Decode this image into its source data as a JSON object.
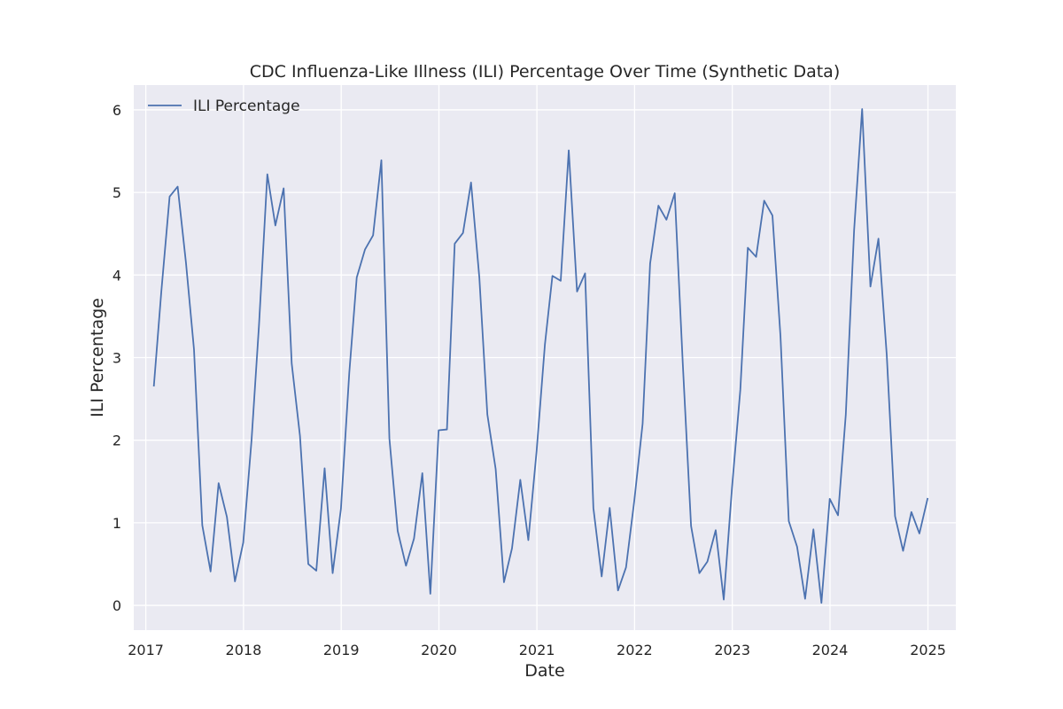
{
  "chart_data": {
    "type": "line",
    "title": "CDC Influenza-Like Illness (ILI) Percentage Over Time (Synthetic Data)",
    "xlabel": "Date",
    "ylabel": "ILI Percentage",
    "x_ticks": [
      "2017",
      "2018",
      "2019",
      "2020",
      "2021",
      "2022",
      "2023",
      "2024",
      "2025"
    ],
    "y_ticks": [
      "0",
      "1",
      "2",
      "3",
      "4",
      "5",
      "6"
    ],
    "xlim": [
      "2016-11-17",
      "2025-04-15"
    ],
    "ylim": [
      -0.3,
      6.3
    ],
    "grid": true,
    "legend_position": "top-left",
    "series": [
      {
        "name": "ILI Percentage",
        "color": "#4c72b0",
        "x": [
          "2017-01-31",
          "2017-02-28",
          "2017-03-31",
          "2017-04-30",
          "2017-05-31",
          "2017-06-30",
          "2017-07-31",
          "2017-08-31",
          "2017-09-30",
          "2017-10-31",
          "2017-11-30",
          "2017-12-31",
          "2018-01-31",
          "2018-02-28",
          "2018-03-31",
          "2018-04-30",
          "2018-05-31",
          "2018-06-30",
          "2018-07-31",
          "2018-08-31",
          "2018-09-30",
          "2018-10-31",
          "2018-11-30",
          "2018-12-31",
          "2019-01-31",
          "2019-02-28",
          "2019-03-31",
          "2019-04-30",
          "2019-05-31",
          "2019-06-30",
          "2019-07-31",
          "2019-08-31",
          "2019-09-30",
          "2019-10-31",
          "2019-11-30",
          "2019-12-31",
          "2020-01-31",
          "2020-02-29",
          "2020-03-31",
          "2020-04-30",
          "2020-05-31",
          "2020-06-30",
          "2020-07-31",
          "2020-08-31",
          "2020-09-30",
          "2020-10-31",
          "2020-11-30",
          "2020-12-31",
          "2021-01-31",
          "2021-02-28",
          "2021-03-31",
          "2021-04-30",
          "2021-05-31",
          "2021-06-30",
          "2021-07-31",
          "2021-08-31",
          "2021-09-30",
          "2021-10-31",
          "2021-11-30",
          "2021-12-31",
          "2022-01-31",
          "2022-02-28",
          "2022-03-31",
          "2022-04-30",
          "2022-05-31",
          "2022-06-30",
          "2022-07-31",
          "2022-08-31",
          "2022-09-30",
          "2022-10-31",
          "2022-11-30",
          "2022-12-31",
          "2023-01-31",
          "2023-02-28",
          "2023-03-31",
          "2023-04-30",
          "2023-05-31",
          "2023-06-30",
          "2023-07-31",
          "2023-08-31",
          "2023-09-30",
          "2023-10-31",
          "2023-11-30",
          "2023-12-31",
          "2024-01-31",
          "2024-02-29",
          "2024-03-31",
          "2024-04-30",
          "2024-05-31",
          "2024-06-30",
          "2024-07-31",
          "2024-08-31",
          "2024-09-30",
          "2024-10-31",
          "2024-11-30",
          "2024-12-31"
        ],
        "values": [
          2.65,
          3.8,
          4.95,
          5.07,
          4.15,
          3.1,
          0.97,
          0.41,
          1.48,
          1.07,
          0.29,
          0.76,
          2.0,
          3.4,
          5.22,
          4.6,
          5.05,
          2.93,
          2.05,
          0.5,
          0.42,
          1.66,
          0.39,
          1.17,
          2.81,
          3.97,
          4.31,
          4.48,
          5.39,
          2.02,
          0.9,
          0.48,
          0.81,
          1.6,
          0.14,
          2.12,
          2.13,
          4.38,
          4.51,
          5.12,
          3.97,
          2.31,
          1.65,
          0.28,
          0.69,
          1.52,
          0.79,
          1.87,
          3.16,
          3.99,
          3.93,
          5.51,
          3.8,
          4.02,
          1.18,
          0.35,
          1.18,
          0.18,
          0.46,
          1.27,
          2.2,
          4.14,
          4.84,
          4.67,
          4.99,
          2.93,
          0.96,
          0.39,
          0.53,
          0.91,
          0.07,
          1.43,
          2.61,
          4.33,
          4.22,
          4.9,
          4.72,
          3.26,
          1.02,
          0.71,
          0.08,
          0.92,
          0.03,
          1.29,
          1.09,
          2.31,
          4.54,
          6.01,
          3.86,
          4.44,
          3.03,
          1.08,
          0.66,
          1.13,
          0.87,
          1.3
        ]
      }
    ]
  }
}
